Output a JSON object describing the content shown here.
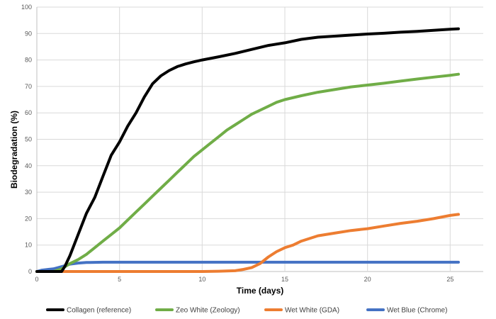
{
  "chart_data": {
    "type": "line",
    "xlabel": "Time (days)",
    "ylabel": "Biodegradation (%)",
    "xlim": [
      0,
      27
    ],
    "ylim": [
      0,
      100
    ],
    "xticks": [
      0,
      5,
      10,
      15,
      20,
      25
    ],
    "yticks": [
      0,
      10,
      20,
      30,
      40,
      50,
      60,
      70,
      80,
      90,
      100
    ],
    "grid": "vertical and horizontal",
    "legend_position": "bottom",
    "series": [
      {
        "name": "Collagen (reference)",
        "color": "#000000",
        "points": [
          [
            0,
            0
          ],
          [
            1.5,
            0
          ],
          [
            1.7,
            2
          ],
          [
            2,
            6
          ],
          [
            2.5,
            14
          ],
          [
            3,
            22
          ],
          [
            3.5,
            28
          ],
          [
            4,
            36
          ],
          [
            4.5,
            44
          ],
          [
            5,
            49
          ],
          [
            5.5,
            55
          ],
          [
            6,
            60
          ],
          [
            6.5,
            66
          ],
          [
            7,
            71
          ],
          [
            7.5,
            74
          ],
          [
            8,
            76
          ],
          [
            8.5,
            77.5
          ],
          [
            9,
            78.5
          ],
          [
            9.5,
            79.3
          ],
          [
            10,
            80
          ],
          [
            11,
            81.2
          ],
          [
            12,
            82.5
          ],
          [
            13,
            84
          ],
          [
            14,
            85.5
          ],
          [
            15,
            86.5
          ],
          [
            16,
            87.8
          ],
          [
            17,
            88.6
          ],
          [
            18,
            89
          ],
          [
            19,
            89.4
          ],
          [
            20,
            89.8
          ],
          [
            21,
            90.1
          ],
          [
            22,
            90.5
          ],
          [
            23,
            90.8
          ],
          [
            24,
            91.2
          ],
          [
            25,
            91.6
          ],
          [
            25.5,
            91.8
          ]
        ]
      },
      {
        "name": "Zeo White (Zeology)",
        "color": "#70ad47",
        "points": [
          [
            0,
            0
          ],
          [
            1,
            0
          ],
          [
            1.5,
            1
          ],
          [
            2,
            3
          ],
          [
            2.5,
            4.5
          ],
          [
            3,
            6.5
          ],
          [
            3.5,
            9
          ],
          [
            4,
            11.5
          ],
          [
            4.5,
            14
          ],
          [
            5,
            16.5
          ],
          [
            5.5,
            19.5
          ],
          [
            6,
            22.5
          ],
          [
            6.5,
            25.5
          ],
          [
            7,
            28.5
          ],
          [
            7.5,
            31.5
          ],
          [
            8,
            34.5
          ],
          [
            8.5,
            37.5
          ],
          [
            9,
            40.5
          ],
          [
            9.5,
            43.5
          ],
          [
            10,
            46
          ],
          [
            10.5,
            48.5
          ],
          [
            11,
            51
          ],
          [
            11.5,
            53.5
          ],
          [
            12,
            55.5
          ],
          [
            12.5,
            57.5
          ],
          [
            13,
            59.5
          ],
          [
            13.5,
            61
          ],
          [
            14,
            62.5
          ],
          [
            14.5,
            64
          ],
          [
            15,
            65
          ],
          [
            16,
            66.5
          ],
          [
            17,
            67.8
          ],
          [
            18,
            68.8
          ],
          [
            19,
            69.8
          ],
          [
            20,
            70.5
          ],
          [
            21,
            71.2
          ],
          [
            22,
            72
          ],
          [
            23,
            72.8
          ],
          [
            24,
            73.5
          ],
          [
            25,
            74.2
          ],
          [
            25.5,
            74.6
          ]
        ]
      },
      {
        "name": "Wet White (GDA)",
        "color": "#ed7d31",
        "points": [
          [
            0,
            0
          ],
          [
            4,
            0
          ],
          [
            8,
            0
          ],
          [
            10,
            0
          ],
          [
            11,
            0.1
          ],
          [
            12,
            0.3
          ],
          [
            12.5,
            0.8
          ],
          [
            13,
            1.5
          ],
          [
            13.5,
            3
          ],
          [
            14,
            5.5
          ],
          [
            14.5,
            7.5
          ],
          [
            15,
            9
          ],
          [
            15.5,
            10
          ],
          [
            16,
            11.5
          ],
          [
            16.5,
            12.5
          ],
          [
            17,
            13.5
          ],
          [
            18,
            14.5
          ],
          [
            19,
            15.5
          ],
          [
            20,
            16.2
          ],
          [
            21,
            17.2
          ],
          [
            22,
            18.2
          ],
          [
            23,
            19
          ],
          [
            24,
            20
          ],
          [
            25,
            21.2
          ],
          [
            25.5,
            21.6
          ]
        ]
      },
      {
        "name": "Wet Blue (Chrome)",
        "color": "#4472c4",
        "points": [
          [
            0,
            0
          ],
          [
            0.3,
            0.5
          ],
          [
            0.7,
            0.8
          ],
          [
            1,
            1
          ],
          [
            1.3,
            1.5
          ],
          [
            1.7,
            2.2
          ],
          [
            2,
            2.8
          ],
          [
            2.5,
            3.2
          ],
          [
            3,
            3.4
          ],
          [
            4,
            3.5
          ],
          [
            10,
            3.5
          ],
          [
            15,
            3.5
          ],
          [
            20,
            3.5
          ],
          [
            25.5,
            3.5
          ]
        ]
      }
    ]
  }
}
